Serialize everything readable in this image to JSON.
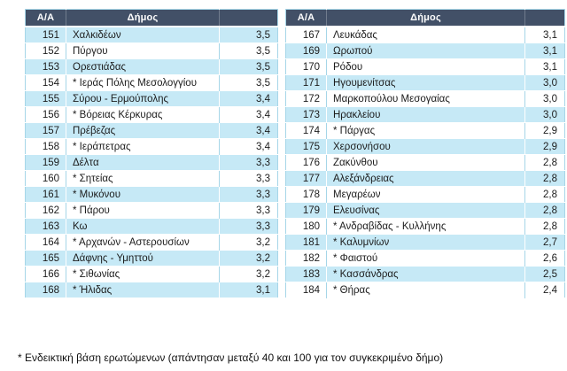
{
  "colors": {
    "header_bg": "#425067",
    "header_text": "#ffffff",
    "band": "#c6e9f6",
    "grid": "#a6d6e8",
    "text": "#1c1c1c",
    "background": "#ffffff"
  },
  "columns": {
    "num": "Α/Α",
    "name": "Δήμος",
    "value": ""
  },
  "tables": [
    {
      "id": "left",
      "first_row_shaded": true,
      "rows": [
        {
          "num": "151",
          "name": "Χαλκιδέων",
          "value": "3,5"
        },
        {
          "num": "152",
          "name": "Πύργου",
          "value": "3,5"
        },
        {
          "num": "153",
          "name": "Ορεστιάδας",
          "value": "3,5"
        },
        {
          "num": "154",
          "name": "* Ιεράς Πόλης Μεσολογγίου",
          "value": "3,5"
        },
        {
          "num": "155",
          "name": "Σύρου - Ερμούπολης",
          "value": "3,4"
        },
        {
          "num": "156",
          "name": "* Βόρειας Κέρκυρας",
          "value": "3,4"
        },
        {
          "num": "157",
          "name": "Πρέβεζας",
          "value": "3,4"
        },
        {
          "num": "158",
          "name": "* Ιεράπετρας",
          "value": "3,4"
        },
        {
          "num": "159",
          "name": "Δέλτα",
          "value": "3,3"
        },
        {
          "num": "160",
          "name": "* Σητείας",
          "value": "3,3"
        },
        {
          "num": "161",
          "name": "* Μυκόνου",
          "value": "3,3"
        },
        {
          "num": "162",
          "name": "* Πάρου",
          "value": "3,3"
        },
        {
          "num": "163",
          "name": "Κω",
          "value": "3,3"
        },
        {
          "num": "164",
          "name": "* Αρχανών - Αστερουσίων",
          "value": "3,2"
        },
        {
          "num": "165",
          "name": "Δάφνης - Υμηττού",
          "value": "3,2"
        },
        {
          "num": "166",
          "name": "* Σιθωνίας",
          "value": "3,2"
        },
        {
          "num": "168",
          "name": "* Ήλιδας",
          "value": "3,1"
        }
      ]
    },
    {
      "id": "right",
      "first_row_shaded": false,
      "rows": [
        {
          "num": "167",
          "name": "Λευκάδας",
          "value": "3,1"
        },
        {
          "num": "169",
          "name": "Ωρωπού",
          "value": "3,1"
        },
        {
          "num": "170",
          "name": "Ρόδου",
          "value": "3,1"
        },
        {
          "num": "171",
          "name": "Ηγουμενίτσας",
          "value": "3,0"
        },
        {
          "num": "172",
          "name": "Μαρκοπούλου Μεσογαίας",
          "value": "3,0"
        },
        {
          "num": "173",
          "name": "Ηρακλείου",
          "value": "3,0"
        },
        {
          "num": "174",
          "name": "* Πάργας",
          "value": "2,9"
        },
        {
          "num": "175",
          "name": "Χερσονήσου",
          "value": "2,9"
        },
        {
          "num": "176",
          "name": "Ζακύνθου",
          "value": "2,8"
        },
        {
          "num": "177",
          "name": "Αλεξάνδρειας",
          "value": "2,8"
        },
        {
          "num": "178",
          "name": "Μεγαρέων",
          "value": "2,8"
        },
        {
          "num": "179",
          "name": "Ελευσίνας",
          "value": "2,8"
        },
        {
          "num": "180",
          "name": "* Ανδραβίδας - Κυλλήνης",
          "value": "2,8"
        },
        {
          "num": "181",
          "name": "* Καλυμνίων",
          "value": "2,7"
        },
        {
          "num": "182",
          "name": "* Φαιστού",
          "value": "2,6"
        },
        {
          "num": "183",
          "name": "* Κασσάνδρας",
          "value": "2,5"
        },
        {
          "num": "184",
          "name": "* Θήρας",
          "value": "2,4"
        }
      ]
    }
  ],
  "footnote": "* Ενδεικτική βάση ερωτώμενων (απάντησαν μεταξύ 40 και 100 για τον συγκεκριμένο δήμο)"
}
